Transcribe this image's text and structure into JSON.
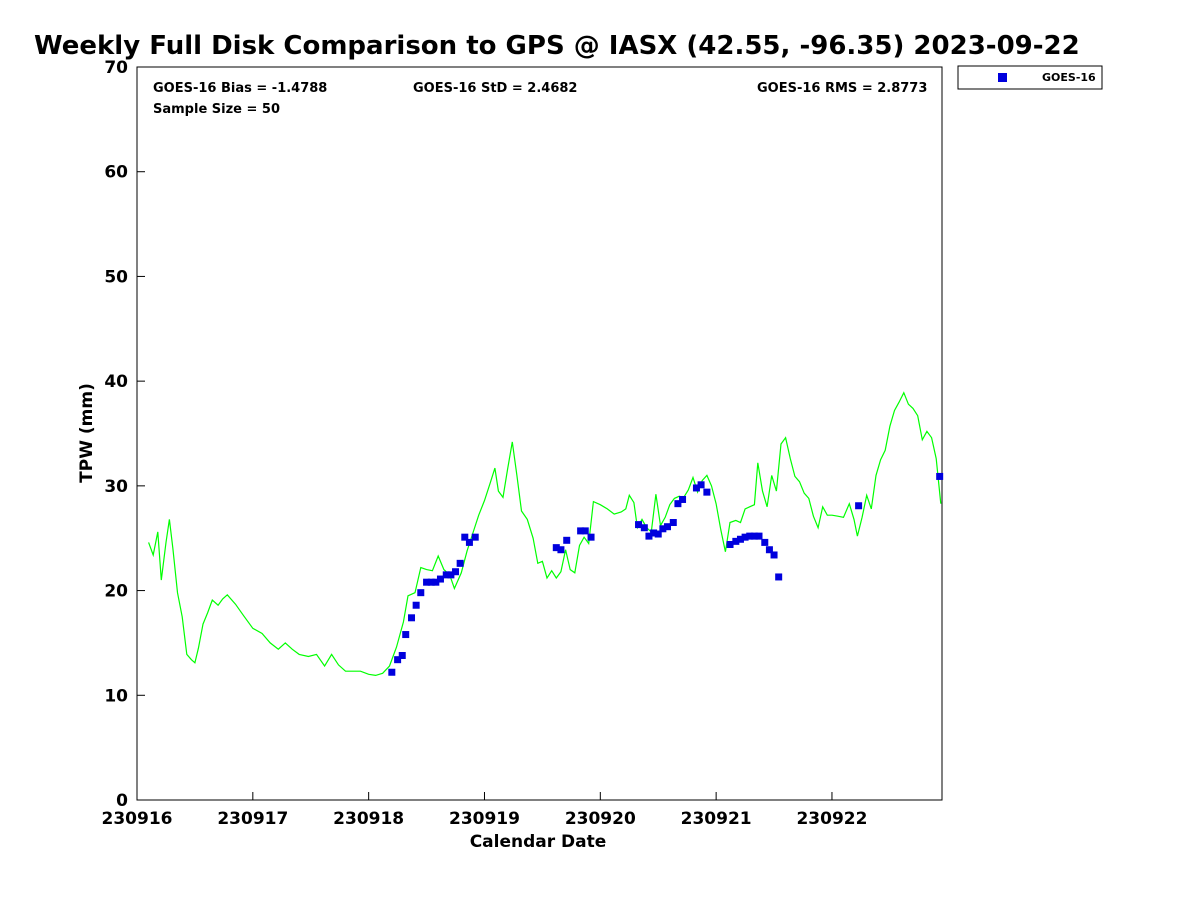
{
  "chart_data": {
    "type": "scatter",
    "title": "Weekly Full Disk Comparison to GPS @ IASX (42.55, -96.35) 2023-09-22",
    "xlabel": "Calendar Date",
    "ylabel": "TPW (mm)",
    "xlim": [
      230916.0,
      230922.95
    ],
    "ylim": [
      0,
      70
    ],
    "x_ticks": [
      230916,
      230917,
      230918,
      230919,
      230920,
      230921,
      230922
    ],
    "x_tick_labels": [
      "230916",
      "230917",
      "230918",
      "230919",
      "230920",
      "230921",
      "230922"
    ],
    "y_ticks": [
      0,
      10,
      20,
      30,
      40,
      50,
      60,
      70
    ],
    "y_tick_labels": [
      "0",
      "10",
      "20",
      "30",
      "40",
      "50",
      "60",
      "70"
    ],
    "grid": false,
    "legend_position": "top-right",
    "stats": {
      "bias": "GOES-16 Bias = -1.4788",
      "std": "GOES-16 StD = 2.4682",
      "rms": "GOES-16 RMS = 2.8773",
      "sample_size": "Sample Size = 50"
    },
    "series": [
      {
        "kind": "line",
        "color": "#00ff00",
        "points": [
          [
            230916.1,
            24.6
          ],
          [
            230916.14,
            23.4
          ],
          [
            230916.18,
            25.6
          ],
          [
            230916.21,
            21.0
          ],
          [
            230916.25,
            24.6
          ],
          [
            230916.28,
            26.8
          ],
          [
            230916.31,
            24.0
          ],
          [
            230916.35,
            19.8
          ],
          [
            230916.39,
            17.5
          ],
          [
            230916.43,
            13.9
          ],
          [
            230916.47,
            13.4
          ],
          [
            230916.5,
            13.1
          ],
          [
            230916.53,
            14.5
          ],
          [
            230916.57,
            16.8
          ],
          [
            230916.61,
            17.9
          ],
          [
            230916.65,
            19.1
          ],
          [
            230916.7,
            18.6
          ],
          [
            230916.74,
            19.2
          ],
          [
            230916.78,
            19.6
          ],
          [
            230916.85,
            18.7
          ],
          [
            230916.92,
            17.6
          ],
          [
            230917.0,
            16.4
          ],
          [
            230917.08,
            15.9
          ],
          [
            230917.15,
            15.0
          ],
          [
            230917.22,
            14.4
          ],
          [
            230917.28,
            15.0
          ],
          [
            230917.34,
            14.4
          ],
          [
            230917.4,
            13.9
          ],
          [
            230917.48,
            13.7
          ],
          [
            230917.55,
            13.9
          ],
          [
            230917.62,
            12.8
          ],
          [
            230917.68,
            13.9
          ],
          [
            230917.74,
            12.9
          ],
          [
            230917.8,
            12.3
          ],
          [
            230917.86,
            12.3
          ],
          [
            230917.93,
            12.3
          ],
          [
            230918.0,
            12.0
          ],
          [
            230918.06,
            11.9
          ],
          [
            230918.12,
            12.1
          ],
          [
            230918.18,
            12.8
          ],
          [
            230918.24,
            14.6
          ],
          [
            230918.3,
            17.0
          ],
          [
            230918.34,
            19.5
          ],
          [
            230918.4,
            19.8
          ],
          [
            230918.45,
            22.2
          ],
          [
            230918.5,
            22.0
          ],
          [
            230918.55,
            21.9
          ],
          [
            230918.6,
            23.3
          ],
          [
            230918.65,
            22.0
          ],
          [
            230918.7,
            21.5
          ],
          [
            230918.74,
            20.2
          ],
          [
            230918.8,
            21.7
          ],
          [
            230918.85,
            23.8
          ],
          [
            230918.9,
            25.5
          ],
          [
            230918.95,
            27.2
          ],
          [
            230919.0,
            28.6
          ],
          [
            230919.05,
            30.3
          ],
          [
            230919.09,
            31.7
          ],
          [
            230919.12,
            29.5
          ],
          [
            230919.16,
            28.9
          ],
          [
            230919.2,
            31.6
          ],
          [
            230919.24,
            34.2
          ],
          [
            230919.28,
            31.0
          ],
          [
            230919.32,
            27.6
          ],
          [
            230919.37,
            26.8
          ],
          [
            230919.42,
            25.0
          ],
          [
            230919.46,
            22.6
          ],
          [
            230919.5,
            22.8
          ],
          [
            230919.54,
            21.2
          ],
          [
            230919.58,
            21.9
          ],
          [
            230919.62,
            21.2
          ],
          [
            230919.66,
            21.8
          ],
          [
            230919.7,
            23.9
          ],
          [
            230919.74,
            22.0
          ],
          [
            230919.78,
            21.7
          ],
          [
            230919.82,
            24.3
          ],
          [
            230919.86,
            25.1
          ],
          [
            230919.9,
            24.5
          ],
          [
            230919.94,
            28.5
          ],
          [
            230920.0,
            28.2
          ],
          [
            230920.06,
            27.8
          ],
          [
            230920.12,
            27.3
          ],
          [
            230920.18,
            27.5
          ],
          [
            230920.22,
            27.8
          ],
          [
            230920.25,
            29.1
          ],
          [
            230920.29,
            28.4
          ],
          [
            230920.32,
            26.0
          ],
          [
            230920.36,
            26.8
          ],
          [
            230920.4,
            26.0
          ],
          [
            230920.44,
            25.6
          ],
          [
            230920.48,
            29.2
          ],
          [
            230920.52,
            26.2
          ],
          [
            230920.56,
            27.0
          ],
          [
            230920.6,
            28.2
          ],
          [
            230920.64,
            28.8
          ],
          [
            230920.68,
            29.0
          ],
          [
            230920.72,
            28.9
          ],
          [
            230920.76,
            29.6
          ],
          [
            230920.8,
            30.8
          ],
          [
            230920.84,
            29.4
          ],
          [
            230920.88,
            30.5
          ],
          [
            230920.92,
            31.0
          ],
          [
            230920.96,
            30.0
          ],
          [
            230921.0,
            28.3
          ],
          [
            230921.04,
            25.8
          ],
          [
            230921.08,
            23.7
          ],
          [
            230921.12,
            26.5
          ],
          [
            230921.17,
            26.7
          ],
          [
            230921.21,
            26.5
          ],
          [
            230921.25,
            27.8
          ],
          [
            230921.29,
            28.0
          ],
          [
            230921.33,
            28.2
          ],
          [
            230921.36,
            32.2
          ],
          [
            230921.4,
            29.5
          ],
          [
            230921.44,
            28.0
          ],
          [
            230921.48,
            31.0
          ],
          [
            230921.52,
            29.5
          ],
          [
            230921.56,
            34.0
          ],
          [
            230921.6,
            34.6
          ],
          [
            230921.64,
            32.6
          ],
          [
            230921.68,
            30.9
          ],
          [
            230921.72,
            30.4
          ],
          [
            230921.76,
            29.3
          ],
          [
            230921.8,
            28.8
          ],
          [
            230921.84,
            27.1
          ],
          [
            230921.88,
            26.0
          ],
          [
            230921.92,
            28.0
          ],
          [
            230921.96,
            27.2
          ],
          [
            230922.0,
            27.2
          ],
          [
            230922.05,
            27.1
          ],
          [
            230922.1,
            27.0
          ],
          [
            230922.15,
            28.3
          ],
          [
            230922.19,
            26.8
          ],
          [
            230922.22,
            25.2
          ],
          [
            230922.26,
            27.0
          ],
          [
            230922.3,
            29.1
          ],
          [
            230922.34,
            27.8
          ],
          [
            230922.38,
            31.0
          ],
          [
            230922.42,
            32.5
          ],
          [
            230922.46,
            33.4
          ],
          [
            230922.5,
            35.7
          ],
          [
            230922.54,
            37.2
          ],
          [
            230922.58,
            38.0
          ],
          [
            230922.62,
            38.9
          ],
          [
            230922.66,
            37.8
          ],
          [
            230922.7,
            37.4
          ],
          [
            230922.74,
            36.7
          ],
          [
            230922.78,
            34.4
          ],
          [
            230922.82,
            35.2
          ],
          [
            230922.86,
            34.6
          ],
          [
            230922.9,
            32.6
          ],
          [
            230922.94,
            28.3
          ]
        ]
      },
      {
        "name": "GOES-16",
        "kind": "scatter",
        "color": "#0000dd",
        "points": [
          [
            230918.2,
            12.2
          ],
          [
            230918.25,
            13.4
          ],
          [
            230918.29,
            13.8
          ],
          [
            230918.32,
            15.8
          ],
          [
            230918.37,
            17.4
          ],
          [
            230918.41,
            18.6
          ],
          [
            230918.45,
            19.8
          ],
          [
            230918.5,
            20.8
          ],
          [
            230918.54,
            20.8
          ],
          [
            230918.58,
            20.8
          ],
          [
            230918.62,
            21.1
          ],
          [
            230918.67,
            21.5
          ],
          [
            230918.71,
            21.5
          ],
          [
            230918.75,
            21.8
          ],
          [
            230918.79,
            22.6
          ],
          [
            230918.83,
            25.1
          ],
          [
            230918.87,
            24.6
          ],
          [
            230918.92,
            25.1
          ],
          [
            230919.62,
            24.1
          ],
          [
            230919.66,
            23.9
          ],
          [
            230919.71,
            24.8
          ],
          [
            230919.83,
            25.7
          ],
          [
            230919.87,
            25.7
          ],
          [
            230919.92,
            25.1
          ],
          [
            230920.33,
            26.3
          ],
          [
            230920.38,
            26.0
          ],
          [
            230920.42,
            25.2
          ],
          [
            230920.46,
            25.5
          ],
          [
            230920.5,
            25.4
          ],
          [
            230920.54,
            25.9
          ],
          [
            230920.58,
            26.1
          ],
          [
            230920.63,
            26.5
          ],
          [
            230920.67,
            28.3
          ],
          [
            230920.71,
            28.7
          ],
          [
            230920.83,
            29.8
          ],
          [
            230920.87,
            30.1
          ],
          [
            230920.92,
            29.4
          ],
          [
            230921.12,
            24.4
          ],
          [
            230921.17,
            24.7
          ],
          [
            230921.21,
            24.9
          ],
          [
            230921.25,
            25.1
          ],
          [
            230921.29,
            25.2
          ],
          [
            230921.33,
            25.2
          ],
          [
            230921.37,
            25.2
          ],
          [
            230921.42,
            24.6
          ],
          [
            230921.46,
            23.9
          ],
          [
            230921.5,
            23.4
          ],
          [
            230921.54,
            21.3
          ],
          [
            230922.23,
            28.1
          ],
          [
            230922.93,
            30.9
          ]
        ]
      }
    ]
  }
}
